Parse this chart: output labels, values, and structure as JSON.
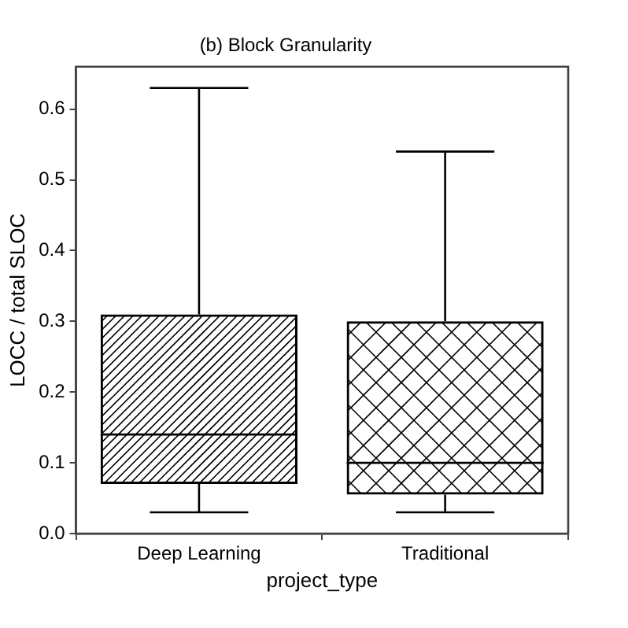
{
  "chart_data": {
    "type": "box",
    "title": "(b) Block Granularity",
    "xlabel": "project_type",
    "ylabel": "LOCC / total SLOC",
    "categories": [
      "Deep Learning",
      "Traditional"
    ],
    "color": "#000000",
    "boxes": [
      {
        "low": 0.03,
        "q1": 0.07,
        "median": 0.14,
        "q3": 0.31,
        "high": 0.63
      },
      {
        "low": 0.03,
        "q1": 0.055,
        "median": 0.1,
        "q3": 0.3,
        "high": 0.54
      }
    ],
    "ylim": [
      0,
      0.66
    ],
    "yticks": [
      {
        "value": 0,
        "label": "0.0"
      },
      0.1,
      0.2,
      0.3,
      0.4,
      0.5,
      0.6
    ],
    "grid": false,
    "legend": false
  }
}
